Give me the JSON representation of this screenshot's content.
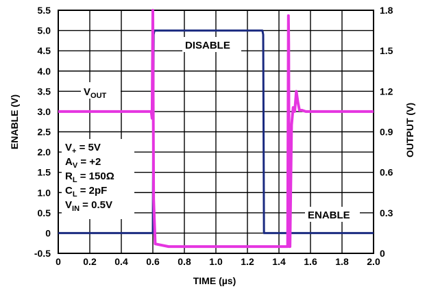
{
  "chart_data": {
    "type": "line",
    "xlabel": "TIME (µs)",
    "ylabel_left": "ENABLE (V)",
    "ylabel_right": "OUTPUT (V)",
    "xlim": [
      0,
      2.0
    ],
    "ylim_left": [
      -0.5,
      5.5
    ],
    "ylim_right": [
      0,
      1.8
    ],
    "grid": true,
    "x_ticks": [
      "0",
      "0.2",
      "0.4",
      "0.6",
      "0.8",
      "1.0",
      "1.2",
      "1.4",
      "1.6",
      "1.8",
      "2.0"
    ],
    "y_left_ticks": [
      "-0.5",
      "0",
      "0.5",
      "1.0",
      "1.5",
      "2.0",
      "2.5",
      "3.0",
      "3.5",
      "4.0",
      "4.5",
      "5.0",
      "5.5"
    ],
    "y_right_ticks": [
      "0",
      "0.3",
      "0.6",
      "0.9",
      "1.2",
      "1.5",
      "1.8"
    ],
    "series": [
      {
        "name": "ENABLE",
        "axis": "left",
        "color": "#1a2a80",
        "x": [
          0,
          0.6,
          0.605,
          0.61,
          0.7,
          0.8,
          0.9,
          1.0,
          1.1,
          1.2,
          1.295,
          1.3,
          1.305,
          1.4,
          1.5,
          1.6,
          1.7,
          1.8,
          1.9,
          2.0
        ],
        "y": [
          0.0,
          0.0,
          4.9,
          5.0,
          5.0,
          5.0,
          5.0,
          5.0,
          5.0,
          5.0,
          5.0,
          4.9,
          0.0,
          0.0,
          0.0,
          0.0,
          0.0,
          0.0,
          0.0,
          0.0
        ]
      },
      {
        "name": "VOUT",
        "axis": "right",
        "color": "#e535e0",
        "x": [
          0,
          0.2,
          0.4,
          0.59,
          0.595,
          0.6,
          0.605,
          0.615,
          0.7,
          1.0,
          1.3,
          1.4,
          1.455,
          1.46,
          1.462,
          1.465,
          1.47,
          1.48,
          1.49,
          1.5,
          1.51,
          1.52,
          1.53,
          1.545,
          1.57,
          1.6,
          1.8,
          2.0
        ],
        "y": [
          1.05,
          1.05,
          1.05,
          1.05,
          1.0,
          1.8,
          0.4,
          0.07,
          0.05,
          0.05,
          0.05,
          0.05,
          0.05,
          1.76,
          1.55,
          0.05,
          0.05,
          0.95,
          1.08,
          1.05,
          1.2,
          1.12,
          1.06,
          1.06,
          1.05,
          1.05,
          1.05,
          1.05
        ]
      }
    ],
    "annotations": {
      "disable": "DISABLE",
      "enable": "ENABLE",
      "vout_main": "V",
      "vout_sub": "OUT",
      "params": [
        {
          "main": "V",
          "sub": "+",
          "rest": " = 5V"
        },
        {
          "main": "A",
          "sub": "V",
          "rest": " = +2"
        },
        {
          "main": "R",
          "sub": "L",
          "rest": " = 150Ω"
        },
        {
          "main": "C",
          "sub": "L",
          "rest": " = 2pF"
        },
        {
          "main": "V",
          "sub": "IN",
          "rest": " = 0.5V"
        }
      ]
    }
  }
}
